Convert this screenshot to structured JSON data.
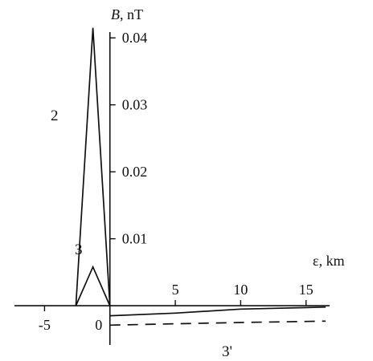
{
  "chart_data": {
    "type": "line",
    "xlabel_symbol": "ε",
    "xlabel_unit": ", km",
    "ylabel_symbol": "B",
    "ylabel_unit": ", nT",
    "x_ticks": [
      {
        "value": -5,
        "label": "-5"
      },
      {
        "value": 0,
        "label": "0"
      },
      {
        "value": 5,
        "label": "5"
      },
      {
        "value": 10,
        "label": "10"
      },
      {
        "value": 15,
        "label": "15"
      }
    ],
    "y_ticks": [
      {
        "value": 0.01,
        "label": "0.01"
      },
      {
        "value": 0.02,
        "label": "0.02"
      },
      {
        "value": 0.03,
        "label": "0.03"
      },
      {
        "value": 0.04,
        "label": "0.04"
      }
    ],
    "xlim": [
      -7.3,
      16.8
    ],
    "ylim": [
      -0.0055,
      0.0435
    ],
    "grid": false,
    "series": [
      {
        "name": "2",
        "style": "solid",
        "points": [
          [
            -2.6,
            0.0
          ],
          [
            -1.3,
            0.0415
          ],
          [
            0.0,
            0.0
          ]
        ]
      },
      {
        "name": "3",
        "style": "solid",
        "points": [
          [
            -2.6,
            0.0
          ],
          [
            -1.3,
            0.0058
          ],
          [
            0.0,
            0.0
          ]
        ]
      },
      {
        "name": "",
        "style": "solid",
        "points": [
          [
            0.0,
            -0.0015
          ],
          [
            5.0,
            -0.0011
          ],
          [
            10.0,
            -0.0005
          ],
          [
            16.5,
            -0.0002
          ]
        ]
      },
      {
        "name": "3'",
        "style": "dashed",
        "points": [
          [
            0.0,
            -0.0029
          ],
          [
            5.0,
            -0.0027
          ],
          [
            10.0,
            -0.0025
          ],
          [
            16.5,
            -0.0023
          ]
        ]
      }
    ]
  }
}
